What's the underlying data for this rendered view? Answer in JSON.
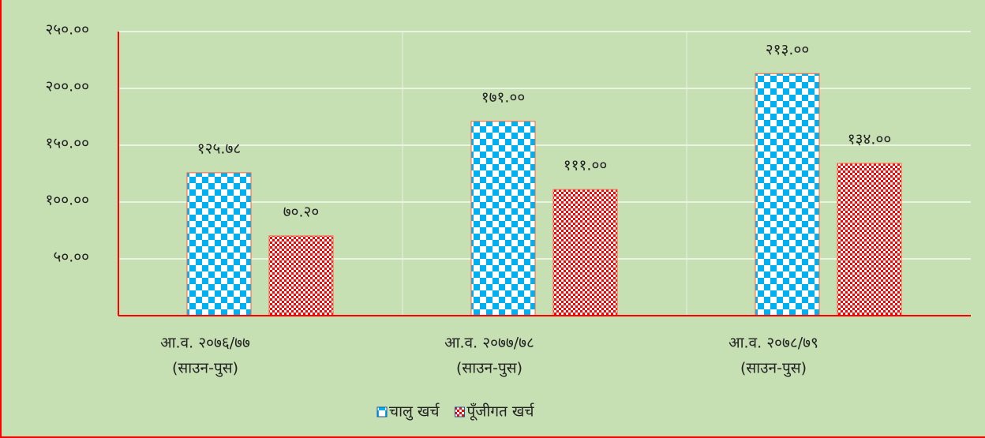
{
  "chart_data": {
    "type": "bar",
    "categories": [
      [
        "आ.व. २०७६/७७",
        "(साउन-पुस)"
      ],
      [
        "आ.व. २०७७/७८",
        "(साउन-पुस)"
      ],
      [
        "आ.व. २०७८/७९",
        "(साउन-पुस)"
      ]
    ],
    "series": [
      {
        "name": "चालु खर्च",
        "color": "#00b0f0",
        "values": [
          125.78,
          171.0,
          213.0
        ],
        "value_labels": [
          "१२५.७८",
          "१७१.००",
          "२१३.००"
        ]
      },
      {
        "name": "पूँजीगत खर्च",
        "color": "#ff0000",
        "values": [
          70.2,
          111.0,
          134.0
        ],
        "value_labels": [
          "७०.२०",
          "१११.००",
          "१३४.००"
        ]
      }
    ],
    "ylim": [
      0,
      250
    ],
    "yticks": [
      {
        "value": 50,
        "label": "५०.००"
      },
      {
        "value": 100,
        "label": "१००.००"
      },
      {
        "value": 150,
        "label": "१५०.००"
      },
      {
        "value": 200,
        "label": "२००.००"
      },
      {
        "value": 250,
        "label": "२५०.००"
      }
    ],
    "grid": true,
    "legend": "bottom"
  }
}
